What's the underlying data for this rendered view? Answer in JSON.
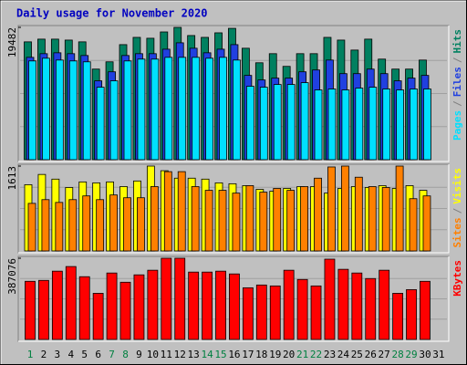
{
  "chart_data": {
    "type": "bar",
    "title": "Daily usage for November 2020",
    "categories": [
      "1",
      "2",
      "3",
      "4",
      "5",
      "6",
      "7",
      "8",
      "9",
      "10",
      "11",
      "12",
      "13",
      "14",
      "15",
      "16",
      "17",
      "18",
      "19",
      "20",
      "21",
      "22",
      "23",
      "24",
      "25",
      "26",
      "27",
      "28",
      "29",
      "30",
      "31"
    ],
    "highlight_categories": [
      "1",
      "7",
      "8",
      "14",
      "15",
      "21",
      "22",
      "28",
      "29"
    ],
    "highlight_color": "#008040",
    "legend_separator": "/",
    "panels": [
      {
        "ylim": [
          0,
          19482
        ],
        "yticks": [
          19482
        ],
        "series": [
          {
            "name": "Hits",
            "color": "#008060",
            "values": [
              17350,
              17750,
              17750,
              17610,
              17350,
              13340,
              14410,
              16940,
              18010,
              17880,
              18810,
              19482,
              18280,
              18010,
              18680,
              19340,
              16410,
              14270,
              15610,
              13740,
              15610,
              15610,
              18010,
              17610,
              16140,
              17750,
              14810,
              13340,
              13340,
              14670,
              null
            ]
          },
          {
            "name": "Files",
            "color": "#2040e0",
            "values": [
              15070,
              15610,
              15740,
              15610,
              15340,
              11610,
              12940,
              15340,
              15610,
              15610,
              16270,
              17210,
              16410,
              15740,
              16270,
              16940,
              12410,
              11740,
              12010,
              12010,
              12940,
              13210,
              14670,
              12670,
              12670,
              13340,
              12670,
              11610,
              12010,
              12410,
              null
            ]
          },
          {
            "name": "Pages",
            "color": "#00e0ff",
            "values": [
              14540,
              14940,
              14670,
              14540,
              14410,
              10670,
              11610,
              14540,
              14810,
              14810,
              15070,
              15070,
              15070,
              14940,
              15070,
              14670,
              10810,
              10670,
              11070,
              11070,
              11340,
              10270,
              10410,
              10270,
              10540,
              10670,
              10410,
              10270,
              10410,
              10410,
              null
            ]
          }
        ]
      },
      {
        "ylim": [
          0,
          1613
        ],
        "yticks": [
          1613
        ],
        "series": [
          {
            "name": "Visits",
            "color": "#ffff00",
            "values": [
              1259,
              1454,
              1365,
              1206,
              1312,
              1294,
              1312,
              1223,
              1330,
              1613,
              1525,
              1383,
              1383,
              1365,
              1294,
              1277,
              1241,
              1170,
              1135,
              1188,
              1223,
              1223,
              1099,
              1188,
              1223,
              1206,
              1241,
              1188,
              1241,
              1152,
              null
            ]
          },
          {
            "name": "Sites",
            "color": "#ff8000",
            "values": [
              904,
              975,
              922,
              975,
              1046,
              975,
              1064,
              1011,
              1011,
              1223,
              1507,
              1507,
              1223,
              1152,
              1152,
              1099,
              1241,
              1117,
              1188,
              1152,
              1223,
              1383,
              1596,
              1613,
              1401,
              1223,
              1206,
              1613,
              993,
              1046,
              null
            ]
          }
        ]
      },
      {
        "ylim": [
          0,
          387076
        ],
        "yticks": [
          387076
        ],
        "series": [
          {
            "name": "KBytes",
            "color": "#ff0000",
            "values": [
              277100,
              281500,
              325500,
              347500,
              299100,
              219900,
              316700,
              272700,
              307900,
              329900,
              387076,
              387076,
              321100,
              321100,
              325500,
              312300,
              246300,
              259500,
              255100,
              329900,
              285900,
              255100,
              382700,
              334300,
              316700,
              290300,
              329900,
              219900,
              237500,
              277100,
              null
            ]
          }
        ]
      }
    ]
  }
}
